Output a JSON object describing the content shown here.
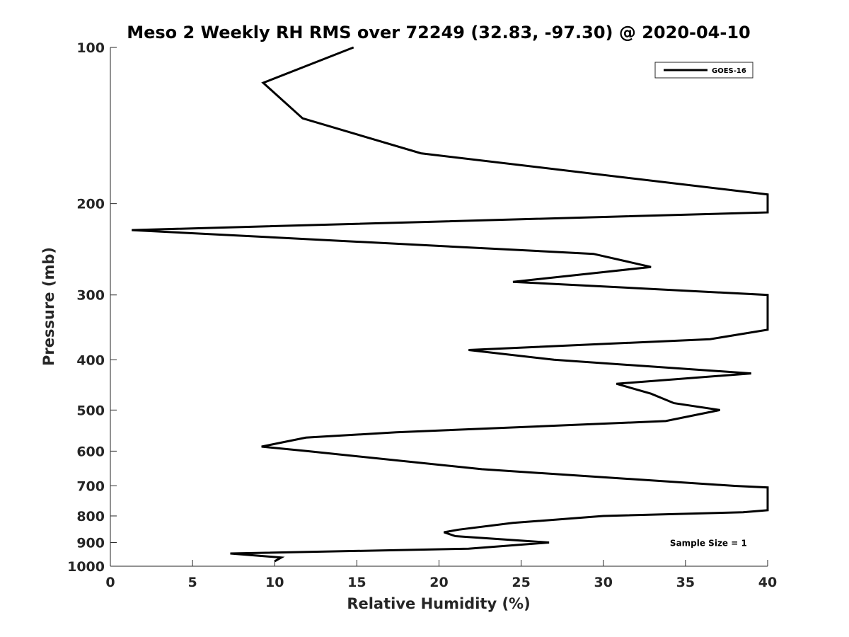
{
  "chart_data": {
    "type": "line",
    "title": "Meso 2 Weekly RH RMS over 72249 (32.83, -97.30) @ 2020-04-10",
    "xlabel": "Relative Humidity (%)",
    "ylabel": "Pressure (mb)",
    "xlim": [
      0,
      40
    ],
    "ylim": [
      100,
      1000
    ],
    "yscale": "log",
    "y_reversed": true,
    "grid": false,
    "legend_position": "top-right",
    "x_ticks": [
      0,
      5,
      10,
      15,
      20,
      25,
      30,
      35,
      40
    ],
    "x_tick_labels": [
      "0",
      "5",
      "10",
      "15",
      "20",
      "25",
      "30",
      "35",
      "40"
    ],
    "y_ticks": [
      100,
      200,
      300,
      400,
      500,
      600,
      700,
      800,
      900,
      1000
    ],
    "y_tick_labels": [
      "100",
      "200",
      "300",
      "400",
      "500",
      "600",
      "700",
      "800",
      "900",
      "1000"
    ],
    "series": [
      {
        "name": "GOES-16",
        "color": "#000000",
        "x": [
          10.0,
          10.4,
          7.3,
          21.8,
          26.7,
          21.0,
          20.3,
          21.2,
          24.5,
          30.0,
          38.5,
          40.0,
          40.0,
          38.0,
          22.6,
          12.0,
          9.2,
          11.9,
          17.4,
          33.8,
          37.1,
          34.3,
          32.9,
          30.8,
          39.0,
          27.0,
          21.8,
          36.5,
          40.0,
          40.0,
          24.5,
          32.9,
          29.4,
          1.3,
          40.0,
          40.0,
          18.9,
          11.7,
          9.3,
          14.8
        ],
        "y": [
          978,
          962,
          945,
          925,
          900,
          875,
          860,
          850,
          825,
          800,
          787,
          780,
          705,
          700,
          650,
          600,
          588,
          565,
          552,
          525,
          500,
          485,
          465,
          445,
          425,
          400,
          383,
          365,
          350,
          300,
          283,
          265,
          250,
          225,
          208,
          192,
          160,
          137,
          117,
          100
        ]
      }
    ],
    "annotations": [
      {
        "text": "Sample Size = 1",
        "x": 36.4,
        "y": 900
      }
    ]
  }
}
